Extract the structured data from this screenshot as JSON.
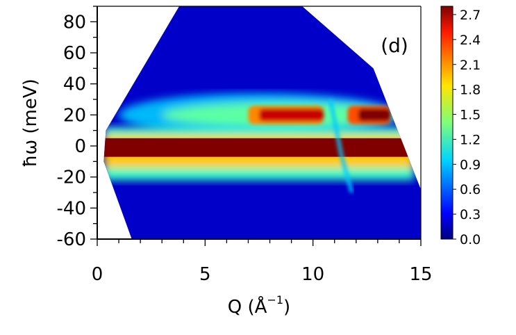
{
  "chart_data": {
    "type": "heatmap",
    "panel_label": "(d)",
    "xlabel": "Q (Å",
    "xlabel_sup": "−1",
    "xlabel_close": ")",
    "ylabel": "ħω (meV)",
    "xlim": [
      0,
      15
    ],
    "ylim": [
      -60,
      90
    ],
    "x_ticks": [
      0,
      5,
      10,
      15
    ],
    "x_tick_labels": [
      "0",
      "5",
      "10",
      "15"
    ],
    "y_ticks": [
      -60,
      -40,
      -20,
      0,
      20,
      40,
      60,
      80
    ],
    "y_tick_labels": [
      "-60",
      "-40",
      "-20",
      "0",
      "20",
      "40",
      "60",
      "80"
    ],
    "colorbar": {
      "range": [
        0.0,
        2.8
      ],
      "ticks": [
        0.0,
        0.3,
        0.6,
        0.9,
        1.2,
        1.5,
        1.8,
        2.1,
        2.4,
        2.7
      ],
      "tick_labels": [
        "0.0",
        "0.3",
        "0.6",
        "0.9",
        "1.2",
        "1.5",
        "1.8",
        "2.1",
        "2.4",
        "2.7"
      ],
      "colormap": "jet"
    },
    "coverage": {
      "left_edge": [
        [
          0.3,
          -10
        ],
        [
          1.6,
          -60
        ],
        [
          0.4,
          10
        ],
        [
          3.8,
          90
        ]
      ],
      "right_edge": [
        [
          9.5,
          90
        ],
        [
          12.8,
          50
        ],
        [
          15.0,
          -28
        ],
        [
          15.0,
          -60
        ]
      ]
    },
    "features": [
      {
        "kind": "elastic_line",
        "energy": 0,
        "q_range": [
          0.3,
          14.7
        ],
        "intensity": 2.8
      },
      {
        "kind": "inelastic_band",
        "energy": 20,
        "q_range": [
          1,
          14
        ],
        "intensity": 1.3
      },
      {
        "kind": "inelastic_hotspot",
        "energy": 20,
        "q_range": [
          7,
          10.5
        ],
        "intensity": 2.6
      },
      {
        "kind": "inelastic_hotspot",
        "energy": 20,
        "q_range": [
          11.6,
          13.6
        ],
        "intensity": 2.8
      },
      {
        "kind": "bragg_dip",
        "q": 11.2
      }
    ]
  }
}
